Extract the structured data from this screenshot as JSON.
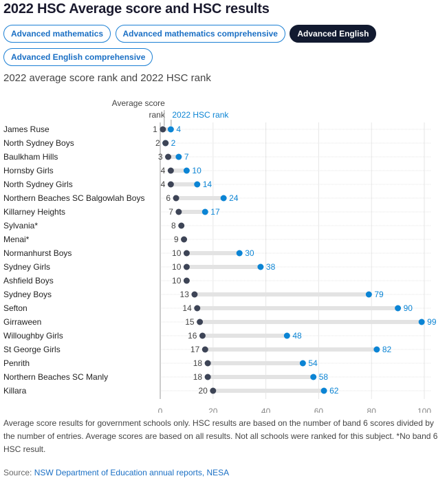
{
  "title": "2022 HSC Average score and HSC results",
  "tabs": [
    {
      "label": "Advanced mathematics",
      "active": false
    },
    {
      "label": "Advanced mathematics comprehensive",
      "active": false
    },
    {
      "label": "Advanced English",
      "active": true
    },
    {
      "label": "Advanced English comprehensive",
      "active": false
    }
  ],
  "subtitle": "2022 average score rank and 2022 HSC rank",
  "chart_data": {
    "type": "dumbbell",
    "legend": {
      "avg_label_line1": "Average score",
      "avg_label_line2": "rank",
      "hsc_label": "2022 HSC rank"
    },
    "xlim": [
      0,
      100
    ],
    "xticks": [
      0,
      20,
      40,
      60,
      80,
      100
    ],
    "grid": true,
    "colors": {
      "avg": "#3d4456",
      "hsc": "#0b84d4",
      "bar": "#e3e3e3"
    },
    "categories": [
      "James Ruse",
      "North Sydney Boys",
      "Baulkham Hills",
      "Hornsby Girls",
      "North Sydney Girls",
      "Northern Beaches SC Balgowlah Boys",
      "Killarney Heights",
      "Sylvania*",
      "Menai*",
      "Normanhurst Boys",
      "Sydney Girls",
      "Ashfield Boys",
      "Sydney Boys",
      "Sefton",
      "Girraween",
      "Willoughby Girls",
      "St George Girls",
      "Penrith",
      "Northern Beaches SC Manly",
      "Killara"
    ],
    "series": [
      {
        "name": "Average score rank",
        "values": [
          1,
          2,
          3,
          4,
          4,
          6,
          7,
          8,
          9,
          10,
          10,
          10,
          13,
          14,
          15,
          16,
          17,
          18,
          18,
          20
        ]
      },
      {
        "name": "2022 HSC rank",
        "values": [
          4,
          2,
          7,
          10,
          14,
          24,
          17,
          null,
          null,
          30,
          38,
          null,
          79,
          90,
          99,
          48,
          82,
          54,
          58,
          62
        ]
      }
    ]
  },
  "note": "Average score results for government schools only. HSC results are based on the number of band 6 scores divided by the number of entries. Average scores are based on all results. Not all schools were ranked for this subject. *No band 6 HSC result.",
  "source_prefix": "Source: ",
  "source_link": "NSW Department of Education annual reports, NESA"
}
